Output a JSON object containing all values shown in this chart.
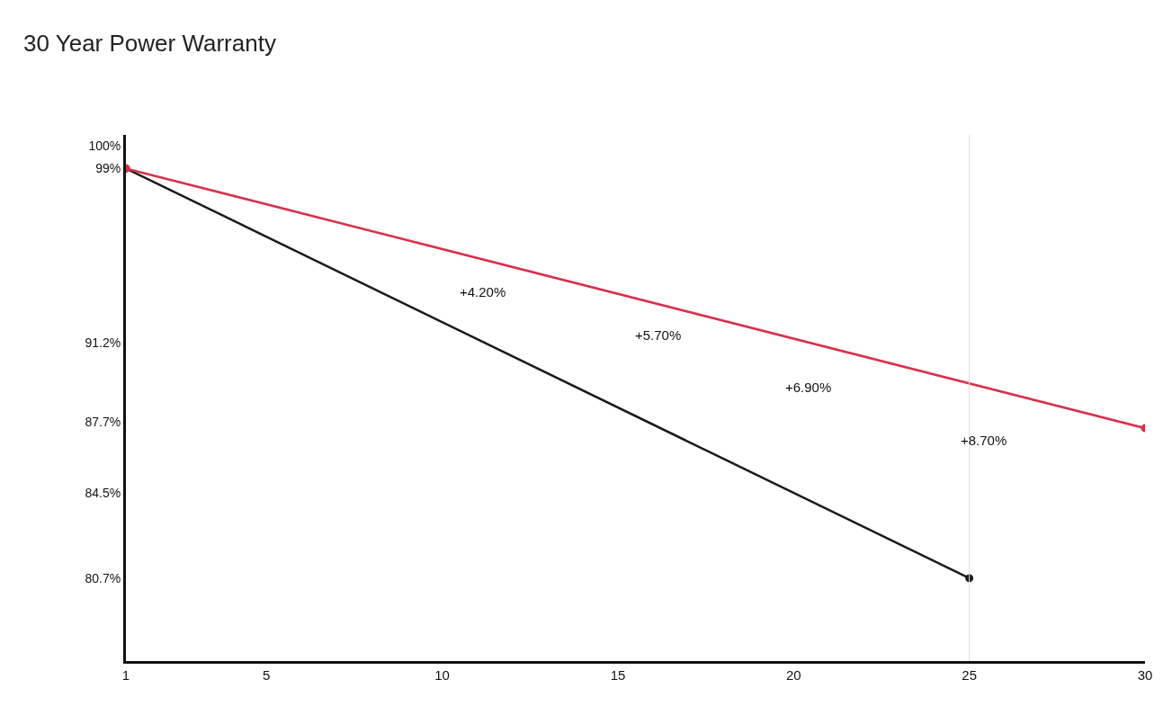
{
  "chart_data": {
    "type": "line",
    "title": "30 Year Power Warranty",
    "series": [
      {
        "color": "#1a1a1a",
        "x": [
          1,
          25
        ],
        "values": [
          99,
          80.7
        ]
      },
      {
        "color": "#d9304a",
        "x": [
          1,
          30
        ],
        "values": [
          99,
          87.4
        ]
      }
    ],
    "xlim": [
      1,
      30
    ],
    "xticks": [
      1,
      5,
      10,
      15,
      20,
      25,
      30
    ],
    "ylim": [
      77,
      100.5
    ],
    "yticks": [
      {
        "value": 100,
        "label": "100%"
      },
      {
        "value": 99,
        "label": "99%"
      },
      {
        "value": 91.2,
        "label": "91.2%"
      },
      {
        "value": 87.7,
        "label": "87.7%"
      },
      {
        "value": 84.5,
        "label": "84.5%"
      },
      {
        "value": 80.7,
        "label": "80.7%"
      }
    ],
    "annotations": [
      "+4.20%",
      "+5.70%",
      "+6.90%",
      "+8.70%"
    ],
    "ref_lines": [
      {
        "axis": "x",
        "value": 25,
        "color": "#dddddd"
      }
    ],
    "marker": "circle",
    "line_style": "solid"
  }
}
